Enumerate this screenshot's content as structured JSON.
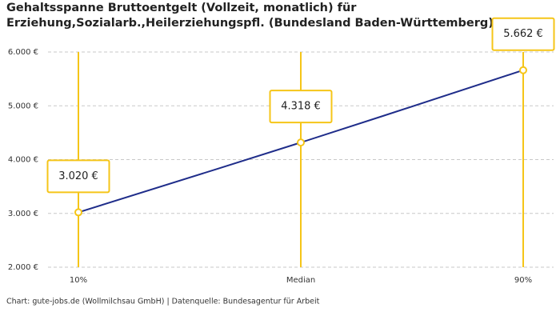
{
  "chart_data": {
    "type": "line",
    "title": [
      "Gehaltsspanne Bruttoentgelt (Vollzeit, monatlich) für",
      "Erziehung,Sozialarb.,Heilerziehungspfl. (Bundesland Baden-Württemberg)"
    ],
    "categories": [
      "10%",
      "Median",
      "90%"
    ],
    "values": [
      3020,
      4318,
      5662
    ],
    "value_labels": [
      "3.020 €",
      "4.318 €",
      "5.662 €"
    ],
    "color": "#1f2d8a",
    "marker_color": "#f5c518",
    "ylim": [
      2000,
      6000
    ],
    "yticks": [
      {
        "value": 2000,
        "label": "2.000 €"
      },
      {
        "value": 3000,
        "label": "3.000 €"
      },
      {
        "value": 4000,
        "label": "4.000 €"
      },
      {
        "value": 5000,
        "label": "5.000 €"
      },
      {
        "value": 6000,
        "label": "6.000 €"
      }
    ],
    "grid": true,
    "source": "Chart: gute-jobs.de (Wollmilchsau GmbH) | Datenquelle: Bundesagentur für Arbeit"
  }
}
